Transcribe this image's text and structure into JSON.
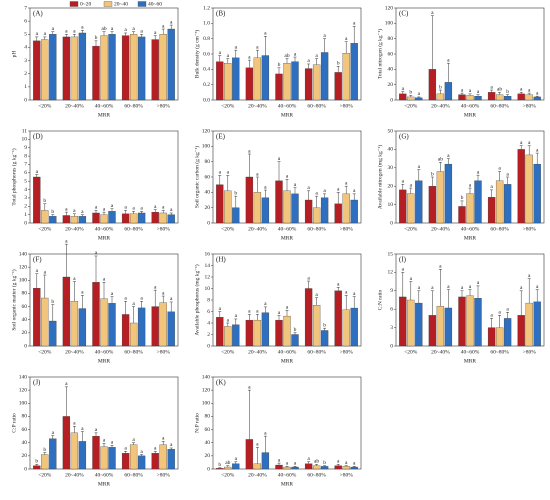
{
  "chart_data": [
    {
      "type": "bar",
      "title": "(A)",
      "ylabel": "pH",
      "xlabel": "MRR",
      "categories": [
        "<20%",
        "20~40%",
        "40~60%",
        "60~80%",
        ">80%"
      ],
      "ylim": [
        0,
        7
      ],
      "yticks": [
        0,
        1,
        2,
        3,
        4,
        5,
        6,
        7
      ],
      "series": [
        {
          "name": "0~20",
          "color": "#b51f24",
          "values": [
            4.5,
            4.8,
            4.1,
            4.9,
            4.6
          ],
          "errors": [
            0.3,
            0.2,
            0.4,
            0.2,
            0.3
          ],
          "letters": [
            "a",
            "a",
            "b",
            "a",
            "a"
          ]
        },
        {
          "name": "20~40",
          "color": "#f2c57c",
          "values": [
            4.6,
            4.8,
            4.9,
            5.0,
            5.0
          ],
          "errors": [
            0.2,
            0.2,
            0.3,
            0.2,
            0.4
          ],
          "letters": [
            "a",
            "a",
            "ab",
            "a",
            "a"
          ]
        },
        {
          "name": "40~60",
          "color": "#2f6fbf",
          "values": [
            5.0,
            5.1,
            5.0,
            4.8,
            5.4
          ],
          "errors": [
            0.2,
            0.2,
            0.2,
            0.2,
            0.3
          ],
          "letters": [
            "a",
            "a",
            "a",
            "a",
            "a"
          ]
        }
      ]
    },
    {
      "type": "bar",
      "title": "(B)",
      "ylabel": "Bulk density (g cm⁻³)",
      "xlabel": "MRR",
      "categories": [
        "<20%",
        "20~40%",
        "40~60%",
        "60~80%",
        ">80%"
      ],
      "ylim": [
        0,
        1.2
      ],
      "yticks": [
        {
          "value": 0,
          "label": "0.0"
        },
        0.2,
        0.4,
        0.6,
        0.8,
        {
          "value": 1,
          "label": "1.0"
        },
        1.2
      ],
      "series": [
        {
          "color": "#b51f24",
          "values": [
            0.5,
            0.42,
            0.34,
            0.41,
            0.36
          ],
          "errors": [
            0.08,
            0.1,
            0.08,
            0.06,
            0.08
          ],
          "letters": [
            "a",
            "a",
            "b",
            "a",
            "b"
          ]
        },
        {
          "color": "#f2c57c",
          "values": [
            0.48,
            0.55,
            0.48,
            0.46,
            0.61
          ],
          "errors": [
            0.06,
            0.1,
            0.06,
            0.08,
            0.15
          ],
          "letters": [
            "a",
            "a",
            "ab",
            "a",
            "a"
          ]
        },
        {
          "color": "#2f6fbf",
          "values": [
            0.55,
            0.58,
            0.5,
            0.62,
            0.74
          ],
          "errors": [
            0.1,
            0.25,
            0.06,
            0.18,
            0.22
          ],
          "letters": [
            "a",
            "a",
            "a",
            "a",
            "a"
          ]
        }
      ]
    },
    {
      "type": "bar",
      "title": "(C)",
      "ylabel": "Total nitrogen (g kg⁻¹)",
      "xlabel": "MRR",
      "categories": [
        "<20%",
        "20~40%",
        "40~60%",
        "60~80%",
        ">80%"
      ],
      "ylim": [
        0,
        120
      ],
      "yticks": [
        0,
        20,
        40,
        60,
        80,
        100,
        120
      ],
      "series": [
        {
          "color": "#b51f24",
          "values": [
            8,
            40,
            7,
            10,
            8
          ],
          "errors": [
            3,
            70,
            2,
            3,
            2
          ],
          "letters": [
            "a",
            "a",
            "a",
            "a",
            "a"
          ]
        },
        {
          "color": "#f2c57c",
          "values": [
            4,
            8,
            6,
            7,
            7
          ],
          "errors": [
            2,
            5,
            2,
            3,
            2
          ],
          "letters": [
            "b",
            "b",
            "a",
            "ab",
            "a"
          ]
        },
        {
          "color": "#2f6fbf",
          "values": [
            3,
            23,
            5,
            5,
            4
          ],
          "errors": [
            1,
            25,
            2,
            2,
            1
          ],
          "letters": [
            "a",
            "a",
            "a",
            "b",
            "a"
          ]
        }
      ]
    },
    {
      "type": "bar",
      "title": "(D)",
      "ylabel": "Total phosphorus (g kg⁻¹)",
      "xlabel": "MRR",
      "categories": [
        "<20%",
        "20~40%",
        "40~60%",
        "60~80%",
        ">80%"
      ],
      "ylim": [
        0,
        11
      ],
      "yticks": [
        0,
        1,
        2,
        3,
        4,
        5,
        6,
        7,
        8,
        9,
        10,
        11
      ],
      "series": [
        {
          "color": "#b51f24",
          "values": [
            5.5,
            0.9,
            1.2,
            1.1,
            1.3
          ],
          "errors": [
            0.3,
            0.4,
            0.3,
            0.4,
            0.3
          ],
          "letters": [
            "a",
            "a",
            "a",
            "a",
            "a"
          ]
        },
        {
          "color": "#f2c57c",
          "values": [
            1.5,
            0.8,
            1.0,
            1.1,
            1.2
          ],
          "errors": [
            0.8,
            0.3,
            0.3,
            0.3,
            0.3
          ],
          "letters": [
            "b",
            "a",
            "a",
            "a",
            "a"
          ]
        },
        {
          "color": "#2f6fbf",
          "values": [
            0.8,
            0.8,
            1.4,
            1.2,
            1.0
          ],
          "errors": [
            0.2,
            0.2,
            0.3,
            0.2,
            0.2
          ],
          "letters": [
            "b",
            "a",
            "a",
            "a",
            "a"
          ]
        }
      ]
    },
    {
      "type": "bar",
      "title": "(E)",
      "ylabel": "Soil organic carbon (g kg⁻¹)",
      "xlabel": "MRR",
      "categories": [
        "<20%",
        "20~40%",
        "40~60%",
        "60~80%",
        ">80%"
      ],
      "ylim": [
        0,
        120
      ],
      "yticks": [
        0,
        20,
        40,
        60,
        80,
        100,
        120
      ],
      "series": [
        {
          "color": "#b51f24",
          "values": [
            50,
            60,
            55,
            30,
            25
          ],
          "errors": [
            12,
            30,
            25,
            12,
            15
          ],
          "letters": [
            "a",
            "a",
            "a",
            "a",
            "a"
          ]
        },
        {
          "color": "#f2c57c",
          "values": [
            42,
            40,
            42,
            20,
            38
          ],
          "errors": [
            20,
            20,
            15,
            15,
            10
          ],
          "letters": [
            "a",
            "a",
            "a",
            "a",
            "a"
          ]
        },
        {
          "color": "#2f6fbf",
          "values": [
            20,
            33,
            38,
            33,
            30
          ],
          "errors": [
            15,
            10,
            8,
            5,
            8
          ],
          "letters": [
            "b",
            "a",
            "a",
            "a",
            "a"
          ]
        }
      ]
    },
    {
      "type": "bar",
      "title": "(G)",
      "ylabel": "Available nitrogen (mg kg⁻¹)",
      "xlabel": "MRR",
      "categories": [
        "<20%",
        "20~40%",
        "40~60%",
        "60~80%",
        ">80%"
      ],
      "ylim": [
        0,
        50
      ],
      "yticks": [
        0,
        10,
        20,
        30,
        40,
        50
      ],
      "series": [
        {
          "color": "#b51f24",
          "values": [
            18,
            20,
            9,
            14,
            40
          ],
          "errors": [
            3,
            5,
            3,
            4,
            2
          ],
          "letters": [
            "a",
            "b",
            "b",
            "a",
            "a"
          ]
        },
        {
          "color": "#f2c57c",
          "values": [
            16,
            28,
            16,
            23,
            37
          ],
          "errors": [
            3,
            5,
            3,
            5,
            5
          ],
          "letters": [
            "a",
            "ab",
            "a",
            "a",
            "a"
          ]
        },
        {
          "color": "#2f6fbf",
          "values": [
            23,
            32,
            23,
            21,
            32
          ],
          "errors": [
            6,
            3,
            3,
            4,
            6
          ],
          "letters": [
            "a",
            "a",
            "a",
            "a",
            "a"
          ]
        }
      ]
    },
    {
      "type": "bar",
      "title": "(F)",
      "ylabel": "Soil organic matter (g kg⁻¹)",
      "xlabel": "MRR",
      "categories": [
        "<20%",
        "20~40%",
        "40~60%",
        "60~80%",
        ">80%"
      ],
      "ylim": [
        0,
        140
      ],
      "yticks": [
        0,
        20,
        40,
        60,
        80,
        100,
        120,
        140
      ],
      "series": [
        {
          "color": "#b51f24",
          "values": [
            88,
            105,
            97,
            48,
            60
          ],
          "errors": [
            22,
            50,
            40,
            20,
            25
          ],
          "letters": [
            "a",
            "a",
            "a",
            "a",
            "a"
          ]
        },
        {
          "color": "#f2c57c",
          "values": [
            73,
            68,
            72,
            35,
            66
          ],
          "errors": [
            35,
            30,
            25,
            25,
            10
          ],
          "letters": [
            "a",
            "a",
            "a",
            "a",
            "a"
          ]
        },
        {
          "color": "#2f6fbf",
          "values": [
            38,
            57,
            65,
            58,
            52
          ],
          "errors": [
            25,
            20,
            10,
            10,
            15
          ],
          "letters": [
            "b",
            "a",
            "a",
            "a",
            "a"
          ]
        }
      ]
    },
    {
      "type": "bar",
      "title": "(H)",
      "ylabel": "Available phosphorus (mg kg⁻¹)",
      "xlabel": "MRR",
      "categories": [
        "<20%",
        "20~40%",
        "40~60%",
        "60~80%",
        ">80%"
      ],
      "ylim": [
        0,
        16
      ],
      "yticks": [
        0,
        2,
        4,
        6,
        8,
        10,
        12,
        14,
        16
      ],
      "series": [
        {
          "color": "#b51f24",
          "values": [
            5.0,
            4.5,
            4.5,
            10.0,
            9.6
          ],
          "errors": [
            1,
            1,
            0.8,
            1.3,
            0.6
          ],
          "letters": [
            "a",
            "a",
            "a",
            "a",
            "a"
          ]
        },
        {
          "color": "#f2c57c",
          "values": [
            3.4,
            4.5,
            5.2,
            7.1,
            6.3
          ],
          "errors": [
            0.6,
            1,
            1,
            1.3,
            2.5
          ],
          "letters": [
            "a",
            "a",
            "a",
            "a",
            "a"
          ]
        },
        {
          "color": "#2f6fbf",
          "values": [
            3.7,
            5.8,
            2.0,
            2.7,
            6.6
          ],
          "errors": [
            1,
            1,
            0.3,
            0.4,
            2
          ],
          "letters": [
            "a",
            "a",
            "b",
            "b",
            "a"
          ]
        }
      ]
    },
    {
      "type": "bar",
      "title": "(I)",
      "ylabel": "C:N ratio",
      "xlabel": "MRR",
      "categories": [
        "<20%",
        "20~40%",
        "40~60%",
        "60~80%",
        ">80%"
      ],
      "ylim": [
        0,
        15
      ],
      "yticks": [
        0,
        3,
        6,
        9,
        12,
        15
      ],
      "series": [
        {
          "color": "#b51f24",
          "values": [
            8,
            5,
            8,
            3,
            5
          ],
          "errors": [
            4,
            4,
            1,
            1.5,
            4
          ],
          "letters": [
            "a",
            "a",
            "a",
            "a",
            "a"
          ]
        },
        {
          "color": "#f2c57c",
          "values": [
            7.5,
            6.5,
            8.2,
            3,
            7
          ],
          "errors": [
            3,
            6,
            1,
            2,
            4
          ],
          "letters": [
            "a",
            "a",
            "a",
            "a",
            "a"
          ]
        },
        {
          "color": "#2f6fbf",
          "values": [
            7,
            6.2,
            7.8,
            4.5,
            7.2
          ],
          "errors": [
            2,
            3,
            2,
            1,
            2
          ],
          "letters": [
            "a",
            "a",
            "a",
            "a",
            "a"
          ]
        }
      ]
    },
    {
      "type": "bar",
      "title": "(J)",
      "ylabel": "C:P ratio",
      "xlabel": "MRR",
      "categories": [
        "<20%",
        "20~40%",
        "40~60%",
        "60~80%",
        ">80%"
      ],
      "ylim": [
        0,
        140
      ],
      "yticks": [
        0,
        20,
        40,
        60,
        80,
        100,
        120,
        140
      ],
      "series": [
        {
          "color": "#b51f24",
          "values": [
            5,
            80,
            50,
            24,
            24
          ],
          "errors": [
            2,
            45,
            5,
            3,
            3
          ],
          "letters": [
            "b",
            "a",
            "a",
            "a",
            "a"
          ]
        },
        {
          "color": "#f2c57c",
          "values": [
            22,
            55,
            34,
            37,
            37
          ],
          "errors": [
            3,
            10,
            5,
            3,
            5
          ],
          "letters": [
            "b",
            "a",
            "a",
            "a",
            "a"
          ]
        },
        {
          "color": "#2f6fbf",
          "values": [
            46,
            42,
            33,
            20,
            30
          ],
          "errors": [
            5,
            15,
            3,
            2,
            2
          ],
          "letters": [
            "a",
            "a",
            "a",
            "a",
            "a"
          ]
        }
      ]
    },
    {
      "type": "bar",
      "title": "(K)",
      "ylabel": "N:P ratio",
      "xlabel": "MRR",
      "categories": [
        "<20%",
        "20~40%",
        "40~60%",
        "60~80%",
        ">80%"
      ],
      "ylim": [
        0,
        140
      ],
      "yticks": [
        0,
        20,
        40,
        60,
        80,
        100,
        120,
        140
      ],
      "series": [
        {
          "color": "#b51f24",
          "values": [
            1,
            45,
            6,
            8,
            5
          ],
          "errors": [
            1,
            75,
            3,
            3,
            2
          ],
          "letters": [
            "b",
            "a",
            "a",
            "a",
            "a"
          ]
        },
        {
          "color": "#f2c57c",
          "values": [
            3,
            8,
            3,
            5,
            4
          ],
          "errors": [
            2,
            25,
            1,
            2,
            1
          ],
          "letters": [
            "ab",
            "a",
            "a",
            "ab",
            "a"
          ]
        },
        {
          "color": "#2f6fbf",
          "values": [
            8,
            25,
            3,
            4,
            3
          ],
          "errors": [
            3,
            25,
            1,
            1,
            1
          ],
          "letters": [
            "a",
            "a",
            "a",
            "b",
            "a"
          ]
        }
      ]
    }
  ]
}
